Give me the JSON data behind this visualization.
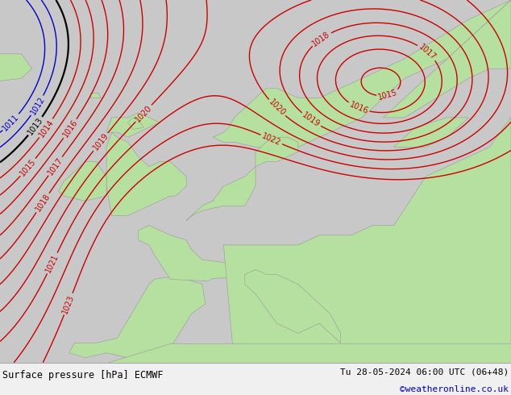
{
  "title_left": "Surface pressure [hPa] ECMWF",
  "title_right": "Tu 28-05-2024 06:00 UTC (06+48)",
  "credit": "©weatheronline.co.uk",
  "bg_color": "#d0d0d0",
  "land_color": "#b5e0a0",
  "sea_color": "#c8c8c8",
  "figsize": [
    6.34,
    4.9
  ],
  "dpi": 100,
  "red_contour_color": "#cc0000",
  "blue_contour_color": "#0000cc",
  "black_contour_color": "#000000",
  "bottom_bar_height": 0.082
}
